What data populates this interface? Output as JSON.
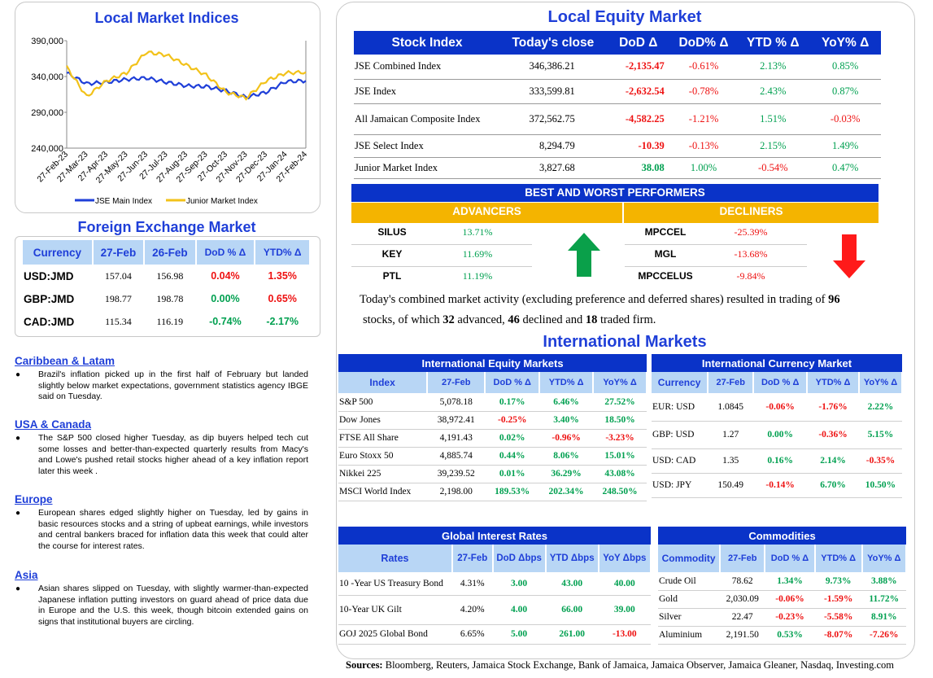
{
  "indices": {
    "title": "Local Market Indices",
    "chart_data": {
      "type": "line",
      "x": [
        "27-Feb-23",
        "27-Mar-23",
        "27-Apr-23",
        "27-May-23",
        "27-Jun-23",
        "27-Jul-23",
        "27-Aug-23",
        "27-Sep-23",
        "27-Oct-23",
        "27-Nov-23",
        "27-Dec-23",
        "27-Jan-24",
        "27-Feb-24"
      ],
      "ylim": [
        240000,
        390000
      ],
      "yticks": [
        "390,000",
        "340,000",
        "290,000",
        "240,000"
      ],
      "series": [
        {
          "name": "JSE Main Index",
          "color": "#1f3fd8",
          "values": [
            345000,
            330000,
            332000,
            336000,
            338000,
            332000,
            327000,
            326000,
            320000,
            311000,
            318000,
            333000,
            334000
          ]
        },
        {
          "name": "Junior Market Index",
          "color": "#f2c21a",
          "values": [
            353000,
            312000,
            334000,
            345000,
            374000,
            370000,
            356000,
            342000,
            318000,
            310000,
            334000,
            345000,
            346000
          ]
        }
      ]
    }
  },
  "fx": {
    "title": "Foreign Exchange Market",
    "headers": [
      "Currency",
      "27-Feb",
      "26-Feb",
      "DoD % Δ",
      "YTD% Δ"
    ],
    "rows": [
      {
        "c": "USD:JMD",
        "a": "157.04",
        "b": "156.98",
        "d": "0.04%",
        "y": "1.35%",
        "dc": "neg",
        "yc": "neg"
      },
      {
        "c": "GBP:JMD",
        "a": "198.77",
        "b": "198.78",
        "d": "0.00%",
        "y": "0.65%",
        "dc": "pos",
        "yc": "neg"
      },
      {
        "c": "CAD:JMD",
        "a": "115.34",
        "b": "116.19",
        "d": "-0.74%",
        "y": "-2.17%",
        "dc": "pos",
        "yc": "pos"
      }
    ]
  },
  "news": [
    {
      "title": "Caribbean & Latam",
      "text": "Brazil's inflation picked up in the first half of February but landed slightly below market expectations, government statistics agency IBGE said on Tuesday."
    },
    {
      "title": "USA & Canada",
      "text": "The S&P 500 closed higher Tuesday, as dip buyers helped tech cut some losses and better-than-expected quarterly results from Macy's and Lowe's pushed retail stocks higher ahead of a key inflation report later this week ."
    },
    {
      "title": "Europe",
      "text": "European shares edged slightly higher on Tuesday, led by gains in basic resources stocks and a string of upbeat earnings, while investors and central bankers braced for inflation data this week that could alter the course for interest rates."
    },
    {
      "title": "Asia",
      "text": "Asian shares slipped on Tuesday, with slightly warmer-than-expected Japanese inflation putting investors on guard ahead of price data due in Europe and the U.S. this week, though bitcoin extended gains on signs that institutional buyers are circling."
    }
  ],
  "equity": {
    "title": "Local Equity Market",
    "headers": [
      "Stock Index",
      "Today's close",
      "DoD  Δ",
      "DoD% Δ",
      "YTD % Δ",
      "YoY% Δ"
    ],
    "rows": [
      {
        "n": "JSE Combined Index",
        "c": "346,386.21",
        "d": "-2,135.47",
        "dp": "-0.61%",
        "y": "2.13%",
        "yy": "0.85%",
        "dc": "neg",
        "yc": "pos",
        "yyc": "pos"
      },
      {
        "n": "JSE Index",
        "c": "333,599.81",
        "d": "-2,632.54",
        "dp": "-0.78%",
        "y": "2.43%",
        "yy": "0.87%",
        "dc": "neg",
        "yc": "pos",
        "yyc": "pos"
      },
      {
        "n": "All Jamaican Composite Index",
        "c": "372,562.75",
        "d": "-4,582.25",
        "dp": "-1.21%",
        "y": "1.51%",
        "yy": "-0.03%",
        "dc": "neg",
        "yc": "pos",
        "yyc": "neg"
      },
      {
        "n": "JSE Select Index",
        "c": "8,294.79",
        "d": "-10.39",
        "dp": "-0.13%",
        "y": "2.15%",
        "yy": "1.49%",
        "dc": "neg",
        "yc": "pos",
        "yyc": "pos"
      },
      {
        "n": "Junior Market Index",
        "c": "3,827.68",
        "d": "38.08",
        "dp": "1.00%",
        "y": "-0.54%",
        "yy": "0.47%",
        "dc": "pos",
        "yc": "neg",
        "yyc": "pos"
      }
    ]
  },
  "performers": {
    "title": "BEST AND WORST PERFORMERS",
    "adv_label": "ADVANCERS",
    "dec_label": "DECLINERS",
    "advancers": [
      {
        "s": "SILUS",
        "p": "13.71%"
      },
      {
        "s": "KEY",
        "p": "11.69%"
      },
      {
        "s": "PTL",
        "p": "11.19%"
      }
    ],
    "decliners": [
      {
        "s": "MPCCEL",
        "p": "-25.39%"
      },
      {
        "s": "MGL",
        "p": "-13.68%"
      },
      {
        "s": "MPCCELUS",
        "p": "-9.84%"
      }
    ]
  },
  "summary": {
    "p1": "Today's combined market activity (excluding preference and deferred shares) resulted in trading of ",
    "n1": "96",
    "p2": "stocks, of which ",
    "n2": "32",
    "p3": " advanced, ",
    "n3": "46",
    "p4": " declined and ",
    "n4": "18",
    "p5": " traded firm."
  },
  "intl_title": "International Markets",
  "intl_equity": {
    "title": "International Equity Markets",
    "headers": [
      "Index",
      "27-Feb",
      "DoD % Δ",
      "YTD% Δ",
      "YoY% Δ"
    ],
    "rows": [
      {
        "n": "S&P 500",
        "v": "5,078.18",
        "d": "0.17%",
        "y": "6.46%",
        "yy": "27.52%",
        "dc": "pos",
        "yc": "pos",
        "yyc": "pos"
      },
      {
        "n": "Dow Jones",
        "v": "38,972.41",
        "d": "-0.25%",
        "y": "3.40%",
        "yy": "18.50%",
        "dc": "neg",
        "yc": "pos",
        "yyc": "pos"
      },
      {
        "n": "FTSE All Share",
        "v": "4,191.43",
        "d": "0.02%",
        "y": "-0.96%",
        "yy": "-3.23%",
        "dc": "pos",
        "yc": "neg",
        "yyc": "neg"
      },
      {
        "n": "Euro Stoxx 50",
        "v": "4,885.74",
        "d": "0.44%",
        "y": "8.06%",
        "yy": "15.01%",
        "dc": "pos",
        "yc": "pos",
        "yyc": "pos"
      },
      {
        "n": "Nikkei 225",
        "v": "39,239.52",
        "d": "0.01%",
        "y": "36.29%",
        "yy": "43.08%",
        "dc": "pos",
        "yc": "pos",
        "yyc": "pos"
      },
      {
        "n": "MSCI World Index",
        "v": "2,198.00",
        "d": "189.53%",
        "y": "202.34%",
        "yy": "248.50%",
        "dc": "pos",
        "yc": "pos",
        "yyc": "pos"
      }
    ]
  },
  "intl_currency": {
    "title": "International Currency Market",
    "headers": [
      "Currency",
      "27-Feb",
      "DoD % Δ",
      "YTD% Δ",
      "YoY% Δ"
    ],
    "rows": [
      {
        "n": "EUR: USD",
        "v": "1.0845",
        "d": "-0.06%",
        "y": "-1.76%",
        "yy": "2.22%",
        "dc": "neg",
        "yc": "neg",
        "yyc": "pos"
      },
      {
        "n": "GBP: USD",
        "v": "1.27",
        "d": "0.00%",
        "y": "-0.36%",
        "yy": "5.15%",
        "dc": "pos",
        "yc": "neg",
        "yyc": "pos"
      },
      {
        "n": "USD: CAD",
        "v": "1.35",
        "d": "0.16%",
        "y": "2.14%",
        "yy": "-0.35%",
        "dc": "pos",
        "yc": "pos",
        "yyc": "neg"
      },
      {
        "n": "USD: JPY",
        "v": "150.49",
        "d": "-0.14%",
        "y": "6.70%",
        "yy": "10.50%",
        "dc": "neg",
        "yc": "pos",
        "yyc": "pos"
      }
    ]
  },
  "rates": {
    "title": "Global Interest Rates",
    "headers": [
      "Rates",
      "27-Feb",
      "DoD Δbps",
      "YTD Δbps",
      "YoY Δbps"
    ],
    "rows": [
      {
        "n": "10 -Year US Treasury Bond",
        "v": "4.31%",
        "d": "3.00",
        "y": "43.00",
        "yy": "40.00",
        "dc": "pos",
        "yc": "pos",
        "yyc": "pos"
      },
      {
        "n": "10-Year UK Gilt",
        "v": "4.20%",
        "d": "4.00",
        "y": "66.00",
        "yy": "39.00",
        "dc": "pos",
        "yc": "pos",
        "yyc": "pos"
      },
      {
        "n": "GOJ 2025 Global Bond",
        "v": "6.65%",
        "d": "5.00",
        "y": "261.00",
        "yy": "-13.00",
        "dc": "pos",
        "yc": "pos",
        "yyc": "neg"
      }
    ]
  },
  "commodities": {
    "title": "Commodities",
    "headers": [
      "Commodity",
      "27-Feb",
      "DoD % Δ",
      "YTD% Δ",
      "YoY% Δ"
    ],
    "rows": [
      {
        "n": "Crude Oil",
        "v": "78.62",
        "d": "1.34%",
        "y": "9.73%",
        "yy": "3.88%",
        "dc": "pos",
        "yc": "pos",
        "yyc": "pos"
      },
      {
        "n": "Gold",
        "v": "2,030.09",
        "d": "-0.06%",
        "y": "-1.59%",
        "yy": "11.72%",
        "dc": "neg",
        "yc": "neg",
        "yyc": "pos"
      },
      {
        "n": "Silver",
        "v": "22.47",
        "d": "-0.23%",
        "y": "-5.58%",
        "yy": "8.91%",
        "dc": "neg",
        "yc": "neg",
        "yyc": "pos"
      },
      {
        "n": "Aluminium",
        "v": "2,191.50",
        "d": "0.53%",
        "y": "-8.07%",
        "yy": "-7.26%",
        "dc": "pos",
        "yc": "neg",
        "yyc": "neg"
      }
    ]
  },
  "sources": {
    "label": "Sources:",
    "text": " Bloomberg, Reuters, Jamaica Stock Exchange, Bank of Jamaica, Jamaica Observer, Jamaica Gleaner, Nasdaq, Investing.com"
  },
  "colors": {
    "blue": "#0a33c8",
    "gold": "#f4b400",
    "green": "#00a050",
    "red": "#ee1111",
    "light": "#b8d6f5"
  }
}
